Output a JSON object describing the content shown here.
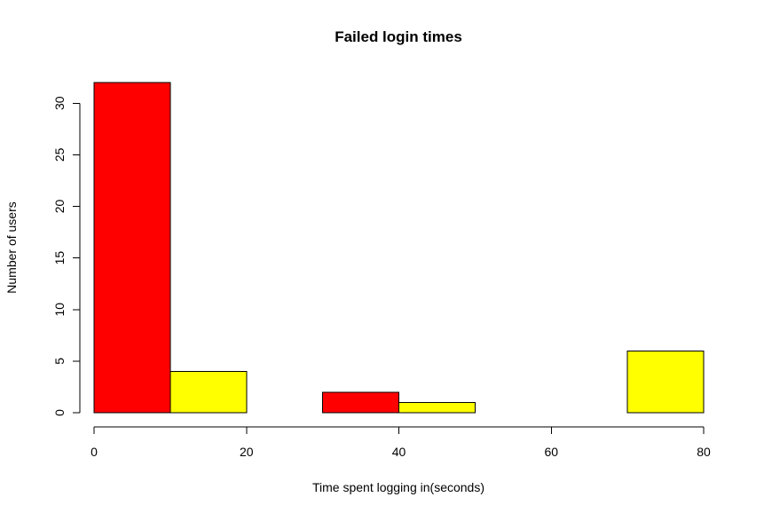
{
  "chart_data": {
    "type": "bar",
    "title": "Failed login times",
    "xlabel": "Time spent logging in(seconds)",
    "ylabel": "Number of users",
    "xlim": [
      0,
      80
    ],
    "ylim": [
      0,
      32
    ],
    "x_ticks": [
      "0",
      "20",
      "40",
      "60",
      "80"
    ],
    "y_ticks": [
      "0",
      "5",
      "10",
      "15",
      "20",
      "25",
      "30"
    ],
    "grid": false,
    "bins": [
      {
        "x0": 0,
        "x1": 10,
        "value": 32,
        "color": "#FF0000"
      },
      {
        "x0": 10,
        "x1": 20,
        "value": 4,
        "color": "#FFFF00"
      },
      {
        "x0": 20,
        "x1": 30,
        "value": 0,
        "color": "#FF0000"
      },
      {
        "x0": 30,
        "x1": 40,
        "value": 2,
        "color": "#FF0000"
      },
      {
        "x0": 40,
        "x1": 50,
        "value": 1,
        "color": "#FFFF00"
      },
      {
        "x0": 50,
        "x1": 60,
        "value": 0,
        "color": "#FFFF00"
      },
      {
        "x0": 60,
        "x1": 70,
        "value": 0,
        "color": "#FF0000"
      },
      {
        "x0": 70,
        "x1": 80,
        "value": 6,
        "color": "#FFFF00"
      }
    ]
  }
}
